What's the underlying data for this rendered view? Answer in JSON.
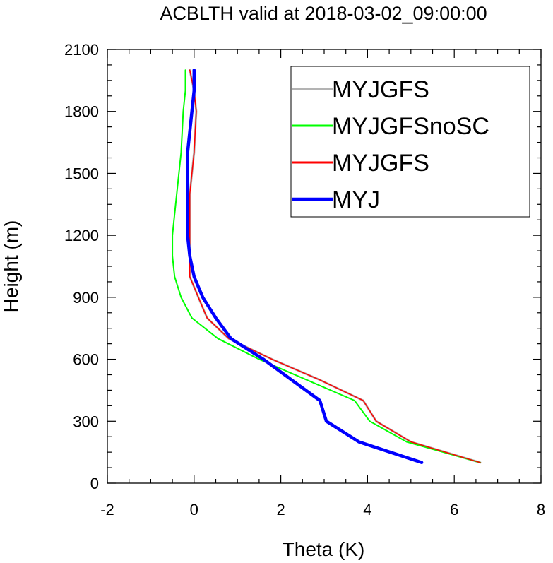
{
  "chart_data": {
    "type": "line",
    "title": "ACBLTH valid at 2018-03-02_09:00:00",
    "xlabel": "Theta (K)",
    "ylabel": "Height (m)",
    "xlim": [
      -2,
      8
    ],
    "ylim": [
      0,
      2100
    ],
    "xticks": [
      "-2",
      "0",
      "2",
      "4",
      "6",
      "8"
    ],
    "yticks": [
      "0",
      "300",
      "600",
      "900",
      "1200",
      "1500",
      "1800",
      "2100"
    ],
    "grid": false,
    "legend_position": "top-right",
    "series": [
      {
        "name": "MYJGFS",
        "color": "#b3b3b3",
        "width": 3,
        "x": [
          6.6,
          5.0,
          4.2,
          3.9,
          2.9,
          1.8,
          0.8,
          0.3,
          0.1,
          -0.1,
          -0.1,
          -0.1,
          -0.1,
          0.0,
          0.05,
          0.0,
          -0.1
        ],
        "y": [
          100,
          200,
          300,
          400,
          500,
          600,
          700,
          800,
          900,
          1000,
          1100,
          1200,
          1400,
          1600,
          1800,
          1900,
          2000
        ]
      },
      {
        "name": "MYJGFSnoSC",
        "color": "#00ff00",
        "width": 2,
        "x": [
          6.6,
          4.9,
          4.05,
          3.7,
          2.6,
          1.5,
          0.55,
          -0.05,
          -0.3,
          -0.45,
          -0.5,
          -0.5,
          -0.4,
          -0.3,
          -0.25,
          -0.2,
          -0.2
        ],
        "y": [
          100,
          200,
          300,
          400,
          500,
          600,
          700,
          800,
          900,
          1000,
          1100,
          1200,
          1400,
          1600,
          1800,
          1900,
          2000
        ]
      },
      {
        "name": "MYJGFS",
        "color": "#ff0000",
        "width": 1.5,
        "x": [
          6.6,
          5.0,
          4.2,
          3.9,
          2.9,
          1.8,
          0.8,
          0.3,
          0.1,
          -0.1,
          -0.1,
          -0.1,
          -0.1,
          0.0,
          0.05,
          0.0,
          -0.1
        ],
        "y": [
          100,
          200,
          300,
          400,
          500,
          600,
          700,
          800,
          900,
          1000,
          1100,
          1200,
          1400,
          1600,
          1800,
          1900,
          2000
        ]
      },
      {
        "name": "MYJ",
        "color": "#0000ff",
        "width": 4.5,
        "x": [
          5.25,
          3.8,
          3.05,
          2.9,
          2.25,
          1.6,
          0.85,
          0.5,
          0.2,
          0.0,
          -0.1,
          -0.15,
          -0.15,
          -0.15,
          -0.05,
          0.0,
          0.0
        ],
        "y": [
          100,
          200,
          300,
          400,
          500,
          600,
          700,
          800,
          900,
          1000,
          1100,
          1200,
          1400,
          1600,
          1800,
          1900,
          2000
        ]
      }
    ]
  }
}
